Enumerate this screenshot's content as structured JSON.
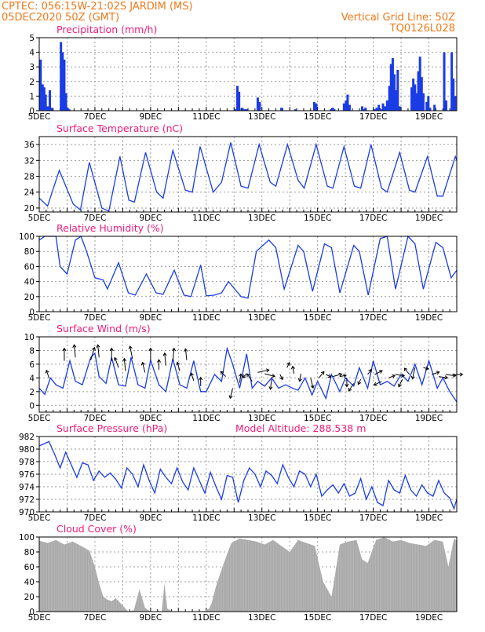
{
  "header": {
    "line1": "CPTEC:  056:15W-21:02S  JARDIM (MS)",
    "line2": "05DEC2020 50Z (GMT)",
    "vgrid": "Vertical Grid Line: 50Z",
    "code": "TQ0126L028"
  },
  "colors": {
    "header": "#f07818",
    "panel_title": "#ee1d7a",
    "series": "#1a3ce6",
    "bars": "#1a3ce6",
    "cloud": "#a9a9a9",
    "grid": "#9a9a9a"
  },
  "chart_data": [
    {
      "id": "precip",
      "type": "bar",
      "title": "Precipitation (mm/h)",
      "ylim": [
        0,
        5
      ],
      "yticks": [
        0,
        1,
        2,
        3,
        4,
        5
      ],
      "xlabels": [
        "5DEC",
        "7DEC",
        "9DEC",
        "11DEC",
        "13DEC",
        "15DEC",
        "17DEC",
        "19DEC"
      ],
      "day_positions": [
        5,
        7,
        9,
        11,
        13,
        15,
        17,
        19
      ],
      "bars": [
        [
          5.05,
          3.5
        ],
        [
          5.12,
          1.8
        ],
        [
          5.18,
          1.6
        ],
        [
          5.23,
          1.1
        ],
        [
          5.3,
          0.3
        ],
        [
          5.38,
          1.4
        ],
        [
          5.45,
          0.2
        ],
        [
          5.78,
          4.7
        ],
        [
          5.84,
          4.0
        ],
        [
          5.9,
          3.5
        ],
        [
          5.96,
          1.2
        ],
        [
          6.02,
          0.2
        ],
        [
          6.08,
          0.1
        ],
        [
          12.05,
          0.1
        ],
        [
          12.12,
          1.7
        ],
        [
          12.18,
          1.3
        ],
        [
          12.3,
          0.2
        ],
        [
          12.38,
          0.1
        ],
        [
          12.45,
          0.1
        ],
        [
          12.85,
          0.9
        ],
        [
          12.92,
          0.6
        ],
        [
          13.7,
          0.2
        ],
        [
          14.2,
          0.1
        ],
        [
          14.88,
          0.6
        ],
        [
          14.95,
          0.5
        ],
        [
          15.48,
          0.1
        ],
        [
          15.55,
          0.2
        ],
        [
          15.6,
          0.1
        ],
        [
          15.95,
          0.5
        ],
        [
          16.02,
          0.7
        ],
        [
          16.08,
          1.1
        ],
        [
          16.15,
          0.4
        ],
        [
          16.6,
          0.3
        ],
        [
          16.66,
          0.1
        ],
        [
          16.72,
          0.2
        ],
        [
          17.05,
          0.1
        ],
        [
          17.12,
          0.2
        ],
        [
          17.2,
          0.4
        ],
        [
          17.28,
          0.1
        ],
        [
          17.35,
          0.5
        ],
        [
          17.42,
          0.3
        ],
        [
          17.5,
          0.7
        ],
        [
          17.58,
          1.7
        ],
        [
          17.64,
          3.2
        ],
        [
          17.7,
          3.6
        ],
        [
          17.76,
          2.5
        ],
        [
          17.82,
          1.4
        ],
        [
          17.88,
          2.8
        ],
        [
          17.94,
          0.3
        ],
        [
          18.38,
          1.6
        ],
        [
          18.44,
          2.2
        ],
        [
          18.5,
          1.8
        ],
        [
          18.56,
          1.2
        ],
        [
          18.62,
          2.7
        ],
        [
          18.68,
          3.7
        ],
        [
          18.74,
          2.3
        ],
        [
          18.8,
          1.2
        ],
        [
          18.92,
          0.6
        ],
        [
          18.98,
          1.0
        ],
        [
          19.04,
          0.2
        ],
        [
          19.2,
          0.4
        ],
        [
          19.55,
          4.0
        ],
        [
          19.62,
          0.7
        ],
        [
          19.82,
          4.0
        ],
        [
          19.88,
          2.2
        ],
        [
          19.94,
          1.0
        ]
      ]
    },
    {
      "id": "temp",
      "type": "line",
      "title": "Surface Temperature (nC)",
      "ylim": [
        19,
        38
      ],
      "yticks": [
        20,
        24,
        28,
        32,
        36
      ],
      "xlabels": [
        "5DEC",
        "7DEC",
        "9DEC",
        "11DEC",
        "13DEC",
        "15DEC",
        "17DEC",
        "19DEC"
      ],
      "day_positions": [
        5,
        7,
        9,
        11,
        13,
        15,
        17,
        19
      ],
      "x": [
        5.0,
        5.3,
        5.72,
        6.22,
        6.48,
        6.8,
        7.25,
        7.5,
        7.9,
        8.22,
        8.42,
        8.82,
        9.22,
        9.45,
        9.8,
        10.25,
        10.5,
        10.78,
        11.25,
        11.55,
        11.88,
        12.25,
        12.5,
        12.9,
        13.3,
        13.5,
        13.92,
        14.3,
        14.52,
        14.95,
        15.35,
        15.55,
        15.95,
        16.32,
        16.55,
        16.92,
        17.3,
        17.5,
        17.95,
        18.3,
        18.5,
        18.95,
        19.3,
        19.5,
        19.95,
        20.0
      ],
      "values": [
        22.5,
        20.5,
        29.5,
        21.0,
        19.5,
        31.5,
        20.0,
        19.2,
        33.0,
        22.0,
        21.5,
        34.0,
        24.0,
        22.5,
        34.5,
        24.5,
        24.0,
        35.5,
        24.0,
        26.5,
        36.5,
        25.5,
        25.0,
        36.0,
        26.5,
        25.5,
        36.0,
        27.0,
        25.0,
        36.0,
        25.5,
        25.0,
        35.5,
        25.5,
        25.0,
        36.0,
        25.0,
        24.0,
        34.0,
        24.5,
        24.0,
        33.0,
        23.0,
        23.0,
        33.0,
        32.0
      ]
    },
    {
      "id": "rh",
      "type": "line",
      "title": "Relative Humidity (%)",
      "ylim": [
        0,
        100
      ],
      "yticks": [
        0,
        20,
        40,
        60,
        80,
        100
      ],
      "xlabels": [
        "5DEC",
        "7DEC",
        "9DEC",
        "11DEC",
        "13DEC",
        "15DEC",
        "17DEC",
        "19DEC"
      ],
      "day_positions": [
        5,
        7,
        9,
        11,
        13,
        15,
        17,
        19
      ],
      "x": [
        5.0,
        5.2,
        5.6,
        5.75,
        6.0,
        6.3,
        6.5,
        6.7,
        7.0,
        7.3,
        7.45,
        7.85,
        8.2,
        8.45,
        8.85,
        9.2,
        9.45,
        9.85,
        10.2,
        10.45,
        10.8,
        11.0,
        11.3,
        11.55,
        11.8,
        12.25,
        12.5,
        12.8,
        13.25,
        13.5,
        13.8,
        14.3,
        14.5,
        14.82,
        15.25,
        15.5,
        15.8,
        16.3,
        16.5,
        16.82,
        17.25,
        17.5,
        17.8,
        18.25,
        18.5,
        18.8,
        19.25,
        19.5,
        19.8,
        20.0
      ],
      "values": [
        95,
        100,
        100,
        60,
        50,
        95,
        100,
        80,
        45,
        42,
        30,
        65,
        25,
        22,
        50,
        25,
        23,
        55,
        22,
        20,
        62,
        21,
        22,
        25,
        40,
        20,
        18,
        80,
        95,
        85,
        30,
        88,
        80,
        27,
        90,
        85,
        25,
        88,
        80,
        22,
        97,
        100,
        30,
        100,
        90,
        30,
        92,
        85,
        45,
        55
      ]
    },
    {
      "id": "wind",
      "type": "line",
      "title": "Surface Wind (m/s)",
      "ylim": [
        -1,
        10
      ],
      "yticks": [
        0,
        2,
        4,
        6,
        8,
        10
      ],
      "xlabels": [
        "5DEC",
        "7DEC",
        "9DEC",
        "11DEC",
        "13DEC",
        "15DEC",
        "17DEC",
        "19DEC"
      ],
      "day_positions": [
        5,
        7,
        9,
        11,
        13,
        15,
        17,
        19
      ],
      "x": [
        5.0,
        5.2,
        5.4,
        5.6,
        5.85,
        6.1,
        6.3,
        6.55,
        6.85,
        7.0,
        7.15,
        7.4,
        7.6,
        7.85,
        8.1,
        8.3,
        8.55,
        8.8,
        9.0,
        9.3,
        9.55,
        9.8,
        10.05,
        10.3,
        10.55,
        10.8,
        11.0,
        11.3,
        11.55,
        11.75,
        11.95,
        12.2,
        12.45,
        12.65,
        12.85,
        13.1,
        13.35,
        13.6,
        13.85,
        14.1,
        14.3,
        14.55,
        14.8,
        15.0,
        15.3,
        15.5,
        15.8,
        16.0,
        16.3,
        16.5,
        16.8,
        17.0,
        17.25,
        17.5,
        17.75,
        18.0,
        18.25,
        18.5,
        18.75,
        19.0,
        19.3,
        19.5,
        19.75,
        20.0
      ],
      "values": [
        2.5,
        1.6,
        4.0,
        3.0,
        2.5,
        6.5,
        3.5,
        3.0,
        7.0,
        7.6,
        4.2,
        3.2,
        7.0,
        3.0,
        2.8,
        7.0,
        3.0,
        2.5,
        6.6,
        3.0,
        2.0,
        6.8,
        3.0,
        2.5,
        6.5,
        2.0,
        2.0,
        4.5,
        3.5,
        8.3,
        6.0,
        2.5,
        7.5,
        2.5,
        3.5,
        2.8,
        4.0,
        2.5,
        3.0,
        2.5,
        2.2,
        4.0,
        1.5,
        3.5,
        1.0,
        4.5,
        2.0,
        4.0,
        2.8,
        5.5,
        2.5,
        6.5,
        3.0,
        3.5,
        2.8,
        4.5,
        3.5,
        6.0,
        3.0,
        6.5,
        2.5,
        4.0,
        2.0,
        0.5
      ],
      "vectors": [
        [
          5.35,
          4.0,
          -2,
          6
        ],
        [
          5.9,
          6.5,
          0,
          10
        ],
        [
          6.3,
          7.0,
          -1,
          10
        ],
        [
          6.85,
          6.6,
          3,
          10
        ],
        [
          7.15,
          7.0,
          -1,
          10
        ],
        [
          7.6,
          6.5,
          0,
          10
        ],
        [
          7.85,
          5.5,
          -3,
          8
        ],
        [
          8.1,
          5.0,
          -1,
          10
        ],
        [
          8.35,
          6.8,
          -2,
          10
        ],
        [
          8.8,
          4.8,
          -2,
          8
        ],
        [
          9.0,
          6.5,
          0,
          10
        ],
        [
          9.3,
          5.2,
          0,
          8
        ],
        [
          9.55,
          5.8,
          -1,
          10
        ],
        [
          9.8,
          6.5,
          1,
          10
        ],
        [
          10.05,
          5.0,
          -2,
          7
        ],
        [
          10.3,
          6.6,
          -1,
          9
        ],
        [
          10.55,
          3.6,
          -2,
          6
        ],
        [
          10.8,
          2.8,
          0,
          7
        ],
        [
          11.7,
          4.2,
          -4,
          4
        ],
        [
          11.95,
          2.5,
          -2,
          -8
        ],
        [
          12.2,
          3.3,
          1,
          7
        ],
        [
          12.45,
          4.6,
          -3,
          -3
        ],
        [
          12.65,
          3.5,
          -4,
          6
        ],
        [
          12.85,
          4.8,
          9,
          2
        ],
        [
          13.1,
          4.6,
          8,
          -2
        ],
        [
          13.35,
          3.8,
          -1,
          -8
        ],
        [
          13.65,
          4.5,
          2,
          -4
        ],
        [
          13.9,
          5.5,
          2,
          4
        ],
        [
          14.15,
          4.6,
          -1,
          6
        ],
        [
          14.4,
          4.6,
          -1,
          -6
        ],
        [
          14.75,
          4.0,
          2,
          -8
        ],
        [
          15.05,
          4.0,
          4,
          5
        ],
        [
          15.3,
          4.5,
          4,
          -2
        ],
        [
          15.55,
          4.2,
          7,
          2
        ],
        [
          15.8,
          4.2,
          5,
          1
        ],
        [
          16.05,
          4.0,
          0,
          -7
        ],
        [
          16.3,
          3.2,
          -4,
          -6
        ],
        [
          16.55,
          3.8,
          -2,
          -4
        ],
        [
          16.8,
          4.5,
          3,
          4
        ],
        [
          17.05,
          4.5,
          6,
          3
        ],
        [
          17.3,
          3.5,
          -6,
          -3
        ],
        [
          17.55,
          4.0,
          5,
          2
        ],
        [
          17.8,
          4.5,
          7,
          -1
        ],
        [
          18.05,
          3.8,
          -3,
          -6
        ],
        [
          18.3,
          4.5,
          -4,
          5
        ],
        [
          18.5,
          5.5,
          -2,
          -9
        ],
        [
          18.8,
          5.5,
          4,
          -1
        ],
        [
          19.1,
          4.5,
          6,
          2
        ],
        [
          19.35,
          4.2,
          7,
          -1
        ],
        [
          19.6,
          4.5,
          8,
          -1
        ],
        [
          19.85,
          4.5,
          8,
          0
        ]
      ]
    },
    {
      "id": "pressure",
      "type": "line",
      "title": "Surface Pressure (hPa)",
      "annotation": "Model Altitude: 288.538 m",
      "ylim": [
        970,
        982
      ],
      "yticks": [
        970,
        972,
        974,
        976,
        978,
        980,
        982
      ],
      "xlabels": [
        "5DEC",
        "7DEC",
        "9DEC",
        "11DEC",
        "13DEC",
        "15DEC",
        "17DEC",
        "19DEC"
      ],
      "day_positions": [
        5,
        7,
        9,
        11,
        13,
        15,
        17,
        19
      ],
      "x": [
        5.0,
        5.15,
        5.35,
        5.55,
        5.75,
        5.95,
        6.15,
        6.35,
        6.55,
        6.75,
        6.95,
        7.15,
        7.35,
        7.55,
        7.75,
        7.95,
        8.15,
        8.35,
        8.55,
        8.75,
        8.95,
        9.15,
        9.35,
        9.55,
        9.75,
        9.95,
        10.15,
        10.35,
        10.55,
        10.75,
        10.95,
        11.15,
        11.35,
        11.55,
        11.75,
        11.95,
        12.15,
        12.35,
        12.55,
        12.75,
        12.95,
        13.15,
        13.35,
        13.55,
        13.75,
        13.95,
        14.15,
        14.35,
        14.55,
        14.75,
        14.95,
        15.15,
        15.35,
        15.55,
        15.75,
        15.95,
        16.15,
        16.35,
        16.55,
        16.75,
        16.95,
        17.15,
        17.35,
        17.55,
        17.75,
        17.95,
        18.15,
        18.35,
        18.55,
        18.75,
        18.95,
        19.15,
        19.35,
        19.55,
        19.75,
        19.9,
        20.0
      ],
      "values": [
        980.5,
        980.8,
        981.2,
        979.2,
        977.0,
        979.5,
        977.5,
        975.5,
        977.8,
        977.5,
        975.0,
        976.5,
        975.5,
        976.2,
        975.2,
        973.8,
        977.0,
        976.0,
        974.0,
        977.5,
        975.0,
        973.0,
        976.8,
        975.5,
        974.5,
        977.0,
        974.8,
        973.5,
        977.0,
        975.0,
        973.0,
        976.3,
        974.0,
        972.0,
        975.8,
        975.5,
        971.5,
        975.0,
        977.0,
        976.0,
        974.0,
        976.5,
        975.8,
        974.5,
        977.5,
        975.5,
        974.0,
        976.5,
        976.0,
        974.0,
        976.0,
        972.5,
        973.5,
        974.3,
        973.0,
        974.5,
        972.5,
        973.0,
        975.3,
        972.0,
        974.0,
        971.5,
        971.0,
        975.0,
        973.5,
        973.0,
        975.8,
        973.5,
        972.5,
        974.3,
        973.0,
        972.5,
        975.0,
        973.0,
        972.2,
        970.5,
        972.0
      ]
    },
    {
      "id": "cloud",
      "type": "area",
      "title": "Cloud Cover (%)",
      "ylim": [
        0,
        100
      ],
      "yticks": [
        0,
        20,
        40,
        60,
        80,
        100
      ],
      "xlabels": [
        "5DEC",
        "7DEC",
        "9DEC",
        "11DEC",
        "13DEC",
        "15DEC",
        "17DEC",
        "19DEC"
      ],
      "day_positions": [
        5,
        7,
        9,
        11,
        13,
        15,
        17,
        19
      ],
      "x": [
        5.0,
        5.3,
        5.6,
        5.9,
        6.2,
        6.5,
        6.8,
        7.0,
        7.15,
        7.3,
        7.45,
        7.6,
        7.75,
        7.9,
        8.05,
        8.2,
        8.4,
        8.6,
        8.8,
        9.0,
        9.2,
        9.4,
        9.5,
        9.6,
        9.8,
        10.2,
        10.6,
        10.9,
        11.1,
        11.2,
        11.35,
        11.6,
        11.9,
        12.2,
        12.5,
        12.8,
        13.1,
        13.4,
        13.7,
        14.0,
        14.3,
        14.6,
        14.9,
        15.2,
        15.5,
        15.8,
        16.1,
        16.4,
        16.6,
        16.8,
        17.1,
        17.4,
        17.7,
        18.0,
        18.3,
        18.6,
        18.9,
        19.2,
        19.5,
        19.7,
        19.9,
        20.0
      ],
      "values": [
        95,
        92,
        96,
        90,
        94,
        88,
        82,
        60,
        38,
        20,
        16,
        14,
        18,
        12,
        6,
        0,
        2,
        30,
        5,
        0,
        0,
        0,
        38,
        4,
        0,
        0,
        0,
        0,
        4,
        12,
        34,
        62,
        92,
        98,
        96,
        94,
        90,
        96,
        88,
        80,
        96,
        92,
        88,
        40,
        20,
        90,
        94,
        96,
        70,
        65,
        96,
        100,
        94,
        96,
        92,
        90,
        88,
        96,
        94,
        60,
        98,
        95
      ]
    }
  ]
}
